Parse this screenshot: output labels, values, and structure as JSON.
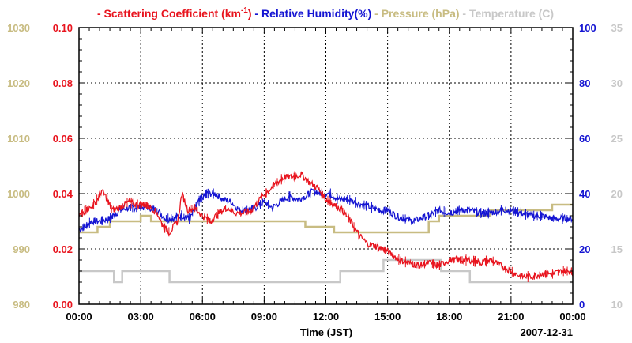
{
  "chart_data": {
    "type": "line",
    "title": "",
    "xlabel": "Time (JST)",
    "date_label": "2007-12-31",
    "x_ticks": [
      "00:00",
      "03:00",
      "06:00",
      "09:00",
      "12:00",
      "15:00",
      "18:00",
      "21:00",
      "00:00"
    ],
    "xlim_hours": [
      0,
      24
    ],
    "grid": true,
    "legend_position": "top",
    "legend": [
      {
        "marker": "-",
        "label": "Scattering Coefficient (km",
        "sup": "-1",
        "close": ")",
        "color": "#e8141e"
      },
      {
        "marker": "-",
        "label": "Relative Humidity(%)",
        "color": "#1414d2"
      },
      {
        "marker": "-",
        "label": "Pressure (hPa)",
        "color": "#c8bc82"
      },
      {
        "marker": "-",
        "label": "Temperature (C)",
        "color": "#c8c8c8"
      }
    ],
    "axes": {
      "pressure": {
        "side": "far-left",
        "ylim": [
          980,
          1030
        ],
        "ticks": [
          "980",
          "990",
          "1000",
          "1010",
          "1020",
          "1030"
        ],
        "color": "#c8bc82"
      },
      "scattering": {
        "side": "left",
        "ylim": [
          0,
          0.1
        ],
        "ticks": [
          "0.00",
          "0.02",
          "0.04",
          "0.06",
          "0.08",
          "0.10"
        ],
        "color": "#e8141e"
      },
      "humidity": {
        "side": "right",
        "ylim": [
          0,
          100
        ],
        "ticks": [
          "0",
          "20",
          "40",
          "60",
          "80",
          "100"
        ],
        "color": "#1414d2"
      },
      "temperature": {
        "side": "far-right",
        "ylim": [
          10,
          35
        ],
        "ticks": [
          "10",
          "15",
          "20",
          "25",
          "30",
          "35"
        ],
        "color": "#c8c8c8"
      }
    },
    "series": [
      {
        "name": "Scattering Coefficient",
        "axis": "scattering",
        "color": "#e8141e",
        "x": [
          0,
          0.3,
          0.6,
          0.9,
          1.1,
          1.3,
          1.6,
          2.0,
          2.4,
          2.8,
          3.2,
          3.5,
          3.8,
          4.1,
          4.4,
          4.6,
          4.8,
          5.0,
          5.3,
          5.6,
          6.0,
          6.4,
          6.8,
          7.2,
          7.6,
          8.0,
          8.4,
          8.8,
          9.2,
          9.6,
          10.0,
          10.4,
          10.8,
          11.2,
          11.6,
          12.0,
          12.4,
          12.8,
          13.2,
          13.6,
          14.0,
          14.4,
          14.8,
          15.2,
          15.6,
          16.0,
          16.5,
          17.0,
          17.5,
          18.0,
          18.5,
          19.0,
          19.5,
          20.0,
          20.5,
          21.0,
          21.5,
          22.0,
          22.5,
          23.0,
          23.5,
          24.0
        ],
        "values": [
          0.032,
          0.034,
          0.035,
          0.038,
          0.041,
          0.039,
          0.034,
          0.035,
          0.037,
          0.036,
          0.036,
          0.035,
          0.033,
          0.028,
          0.026,
          0.028,
          0.03,
          0.04,
          0.034,
          0.035,
          0.032,
          0.03,
          0.033,
          0.035,
          0.033,
          0.033,
          0.034,
          0.038,
          0.041,
          0.044,
          0.046,
          0.046,
          0.047,
          0.044,
          0.042,
          0.038,
          0.036,
          0.034,
          0.03,
          0.025,
          0.022,
          0.021,
          0.02,
          0.018,
          0.016,
          0.015,
          0.014,
          0.015,
          0.014,
          0.016,
          0.016,
          0.016,
          0.015,
          0.016,
          0.014,
          0.012,
          0.01,
          0.01,
          0.011,
          0.011,
          0.012,
          0.012
        ]
      },
      {
        "name": "Relative Humidity",
        "axis": "humidity",
        "color": "#1414d2",
        "x": [
          0,
          0.3,
          0.6,
          1.0,
          1.5,
          2.0,
          2.5,
          3.0,
          3.4,
          3.8,
          4.2,
          4.6,
          5.0,
          5.4,
          5.8,
          6.2,
          6.6,
          7.0,
          7.4,
          7.8,
          8.2,
          8.6,
          9.0,
          9.4,
          9.8,
          10.2,
          10.6,
          11.0,
          11.4,
          11.8,
          12.2,
          12.6,
          13.0,
          13.4,
          13.8,
          14.2,
          14.6,
          15.0,
          15.4,
          15.8,
          16.2,
          16.6,
          17.0,
          17.5,
          18.0,
          18.5,
          19.0,
          19.5,
          20.0,
          20.5,
          21.0,
          21.5,
          22.0,
          22.5,
          23.0,
          23.5,
          24.0
        ],
        "values": [
          27,
          28,
          30,
          30,
          31,
          34,
          35,
          35,
          35,
          34,
          31,
          31,
          32,
          31,
          37,
          40,
          40,
          38,
          37,
          34,
          34,
          35,
          37,
          35,
          37,
          39,
          38,
          39,
          41,
          40,
          40,
          38,
          38,
          37,
          36,
          35,
          34,
          34,
          32,
          31,
          30,
          31,
          32,
          34,
          33,
          34,
          34,
          33,
          33,
          34,
          34,
          33,
          32,
          32,
          31,
          31,
          31
        ]
      },
      {
        "name": "Pressure",
        "axis": "pressure",
        "type": "step",
        "x": [
          0,
          0.9,
          1.5,
          3.0,
          3.5,
          5.0,
          10.0,
          11.0,
          12.4,
          17.0,
          17.5,
          20.0,
          23.0,
          24.0
        ],
        "values": [
          993,
          994,
          995,
          996,
          995,
          995,
          995,
          994,
          993,
          995,
          996,
          997,
          998,
          998
        ]
      },
      {
        "name": "Temperature",
        "axis": "temperature",
        "type": "step",
        "x": [
          0,
          1.3,
          1.7,
          2.1,
          3.6,
          4.4,
          8.8,
          12.0,
          12.7,
          14.0,
          14.8,
          15.4,
          16.0,
          16.8,
          17.6,
          18.5,
          19.0,
          20.0,
          21.5,
          23.0,
          24.0
        ],
        "values": [
          13,
          13,
          12,
          13,
          13,
          12,
          12,
          12,
          13,
          13,
          14,
          14,
          14,
          14,
          13,
          13,
          12,
          12,
          12,
          12,
          12
        ]
      }
    ]
  }
}
